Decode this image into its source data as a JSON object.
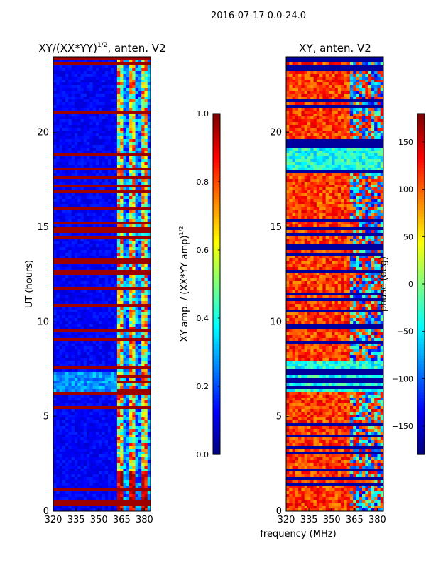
{
  "figure": {
    "suptitle": "2016-07-17 0.0-24.0"
  },
  "chart_data": [
    {
      "type": "heatmap",
      "title_main": "XY/(XX*YY)",
      "title_exp": "1/2",
      "title_rest": ", anten. V2",
      "xlabel": "",
      "ylabel": "UT (hours)",
      "xlim": [
        320,
        384
      ],
      "ylim": [
        0,
        24
      ],
      "xticks": [
        320,
        335,
        350,
        365,
        380
      ],
      "yticks": [
        0,
        5,
        10,
        15,
        20
      ],
      "colormap": "jet",
      "colorbar": {
        "label_main": "XY amp. / (XX*YY amp)",
        "label_exp": "1/2",
        "range": [
          0.0,
          1.0
        ],
        "ticks": [
          "0.0",
          "0.2",
          "0.4",
          "0.6",
          "0.8",
          "1.0"
        ],
        "tick_values": [
          0.0,
          0.2,
          0.4,
          0.6,
          0.8,
          1.0
        ]
      }
    },
    {
      "type": "heatmap",
      "title": "XY, anten. V2",
      "xlabel": "frequency (MHz)",
      "ylabel": "",
      "xlim": [
        320,
        384
      ],
      "ylim": [
        0,
        24
      ],
      "xticks": [
        320,
        335,
        350,
        365,
        380
      ],
      "yticks": [
        0,
        5,
        10,
        15,
        20
      ],
      "colormap": "jet",
      "colorbar": {
        "label": "phase (deg)",
        "range": [
          -180,
          180
        ],
        "ticks": [
          "−150",
          "−100",
          "−50",
          "0",
          "50",
          "100",
          "150"
        ],
        "tick_values": [
          -150,
          -100,
          -50,
          0,
          50,
          100,
          150
        ]
      }
    }
  ]
}
